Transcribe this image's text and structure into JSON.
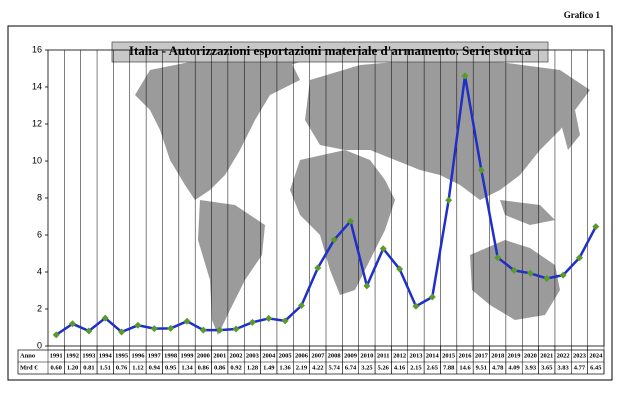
{
  "chart_data": {
    "type": "line",
    "figure_label": "Grafico 1",
    "title": "Italia - Autorizzazioni esportazioni materiale d'armamento. Serie storica",
    "row_labels": [
      "Anno",
      "Mrd €"
    ],
    "categories": [
      "1991",
      "1992",
      "1993",
      "1994",
      "1995",
      "1996",
      "1997",
      "1998",
      "1999",
      "2000",
      "2001",
      "2002",
      "2003",
      "2004",
      "2005",
      "2006",
      "2007",
      "2008",
      "2009",
      "2010",
      "2011",
      "2012",
      "2013",
      "2014",
      "2015",
      "2016",
      "2017",
      "2018",
      "2019",
      "2020",
      "2021",
      "2022",
      "2023",
      "2024"
    ],
    "values": [
      0.6,
      1.2,
      0.81,
      1.51,
      0.76,
      1.12,
      0.94,
      0.95,
      1.34,
      0.86,
      0.86,
      0.92,
      1.28,
      1.49,
      1.36,
      2.19,
      4.22,
      5.74,
      6.74,
      3.25,
      5.26,
      4.16,
      2.15,
      2.65,
      7.88,
      14.6,
      9.51,
      4.78,
      4.09,
      3.93,
      3.65,
      3.83,
      4.77,
      6.45
    ],
    "value_labels": [
      "0.60",
      "1.20",
      "0.81",
      "1.51",
      "0.76",
      "1.12",
      "0.94",
      "0.95",
      "1.34",
      "0.86",
      "0.86",
      "0.92",
      "1.28",
      "1.49",
      "1.36",
      "2.19",
      "4.22",
      "5.74",
      "6.74",
      "3.25",
      "5.26",
      "4.16",
      "2.15",
      "2.65",
      "7.88",
      "14.6",
      "9.51",
      "4.78",
      "4.09",
      "3.93",
      "3.65",
      "3.83",
      "4.77",
      "6.45"
    ],
    "color": "#1f2fc8",
    "marker_color": "#5a9a2a",
    "ylim": [
      0,
      16
    ],
    "yticks": [
      0,
      2,
      4,
      6,
      8,
      10,
      12,
      14,
      16
    ],
    "grid": "vertical"
  }
}
